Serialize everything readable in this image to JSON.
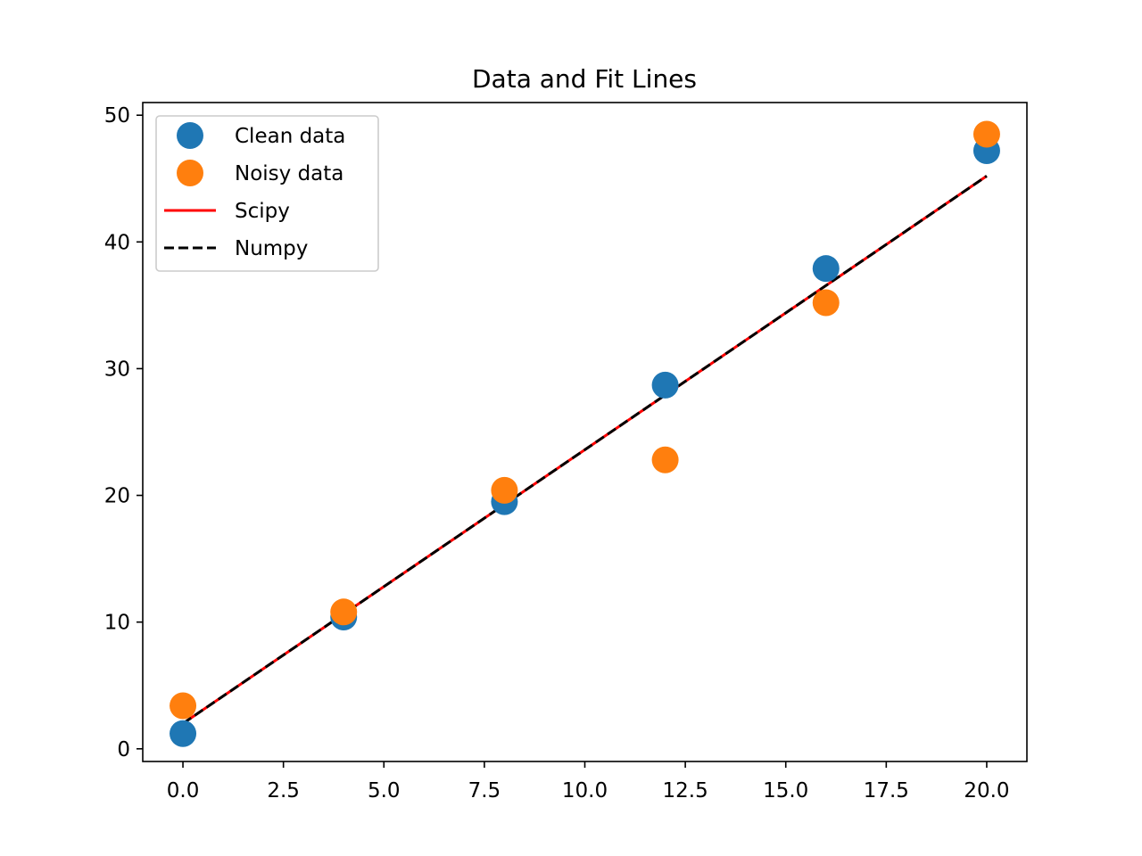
{
  "chart_data": {
    "type": "scatter",
    "title": "Data and Fit Lines",
    "xlabel": "",
    "ylabel": "",
    "xlim": [
      -1.0,
      21.0
    ],
    "ylim": [
      -1.0,
      51.0
    ],
    "xticks": [
      0.0,
      2.5,
      5.0,
      7.5,
      10.0,
      12.5,
      15.0,
      17.5,
      20.0
    ],
    "xtick_labels": [
      "0.0",
      "2.5",
      "5.0",
      "7.5",
      "10.0",
      "12.5",
      "15.0",
      "17.5",
      "20.0"
    ],
    "yticks": [
      0,
      10,
      20,
      30,
      40,
      50
    ],
    "ytick_labels": [
      "0",
      "10",
      "20",
      "30",
      "40",
      "50"
    ],
    "grid": false,
    "legend_position": "top-left",
    "series": [
      {
        "name": "Clean data",
        "kind": "scatter",
        "color": "#1f77b4",
        "x": [
          0,
          4,
          8,
          12,
          16,
          20
        ],
        "y": [
          1.2,
          10.4,
          19.5,
          28.7,
          37.9,
          47.2
        ]
      },
      {
        "name": "Noisy data",
        "kind": "scatter",
        "color": "#ff7f0e",
        "x": [
          0,
          4,
          8,
          12,
          16,
          20
        ],
        "y": [
          3.4,
          10.8,
          20.4,
          22.8,
          35.2,
          48.5
        ]
      },
      {
        "name": "Scipy",
        "kind": "line",
        "style": "solid",
        "color": "#ff0000",
        "x": [
          0,
          20
        ],
        "y": [
          2.0,
          45.2
        ]
      },
      {
        "name": "Numpy",
        "kind": "line",
        "style": "dashed",
        "color": "#000000",
        "x": [
          0,
          20
        ],
        "y": [
          2.0,
          45.2
        ]
      }
    ]
  }
}
